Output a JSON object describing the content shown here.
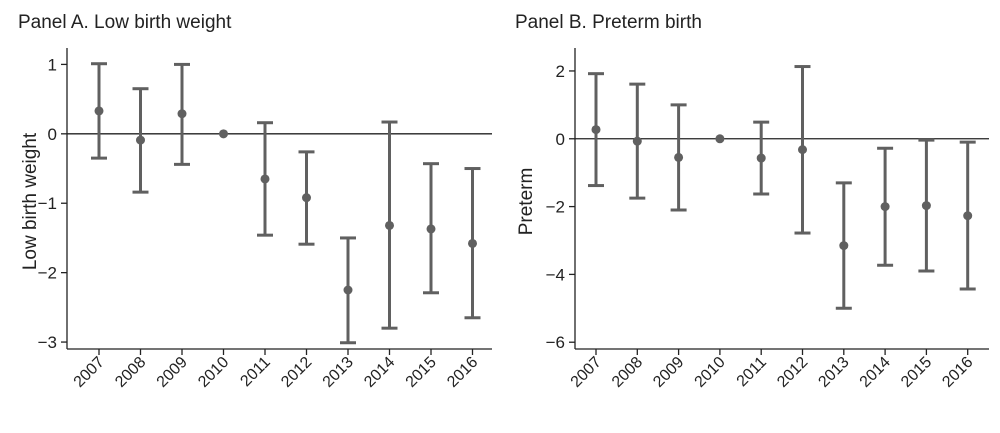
{
  "colors": {
    "marks": "#606060",
    "axis": "#222222",
    "background": "#ffffff"
  },
  "chart_data": [
    {
      "type": "scatter",
      "title": "Panel A. Low birth weight",
      "xlabel": "",
      "ylabel": "Low birth weight",
      "categories": [
        "2007",
        "2008",
        "2009",
        "2010",
        "2011",
        "2012",
        "2013",
        "2014",
        "2015",
        "2016"
      ],
      "values": [
        0.33,
        -0.09,
        0.29,
        0.0,
        -0.65,
        -0.92,
        -2.25,
        -1.32,
        -1.37,
        -1.58
      ],
      "ci_lower": [
        -0.35,
        -0.84,
        -0.44,
        0.0,
        -1.46,
        -1.59,
        -3.01,
        -2.8,
        -2.29,
        -2.65
      ],
      "ci_upper": [
        1.01,
        0.65,
        1.0,
        0.0,
        0.16,
        -0.26,
        -1.5,
        0.17,
        -0.43,
        -0.5
      ],
      "ylim": [
        -3.1,
        1.15
      ],
      "yticks": [
        1,
        0,
        -1,
        -2,
        -3
      ],
      "ytick_labels": [
        "1",
        "0",
        "−1",
        "−2",
        "−3"
      ],
      "reference_line": 0,
      "grid": false
    },
    {
      "type": "scatter",
      "title": "Panel B. Preterm birth",
      "xlabel": "",
      "ylabel": "Preterm",
      "categories": [
        "2007",
        "2008",
        "2009",
        "2010",
        "2011",
        "2012",
        "2013",
        "2014",
        "2015",
        "2016"
      ],
      "values": [
        0.27,
        -0.07,
        -0.55,
        0.0,
        -0.57,
        -0.32,
        -3.15,
        -2.0,
        -1.97,
        -2.27
      ],
      "ci_lower": [
        -1.38,
        -1.75,
        -2.1,
        0.0,
        -1.63,
        -2.78,
        -5.0,
        -3.73,
        -3.9,
        -4.43
      ],
      "ci_upper": [
        1.92,
        1.61,
        1.0,
        0.0,
        0.49,
        2.13,
        -1.3,
        -0.28,
        -0.04,
        -0.1
      ],
      "ylim": [
        -6.2,
        2.5
      ],
      "yticks": [
        2,
        0,
        -2,
        -4,
        -6
      ],
      "ytick_labels": [
        "2",
        "0",
        "−2",
        "−4",
        "−6"
      ],
      "reference_line": 0,
      "grid": false
    }
  ]
}
